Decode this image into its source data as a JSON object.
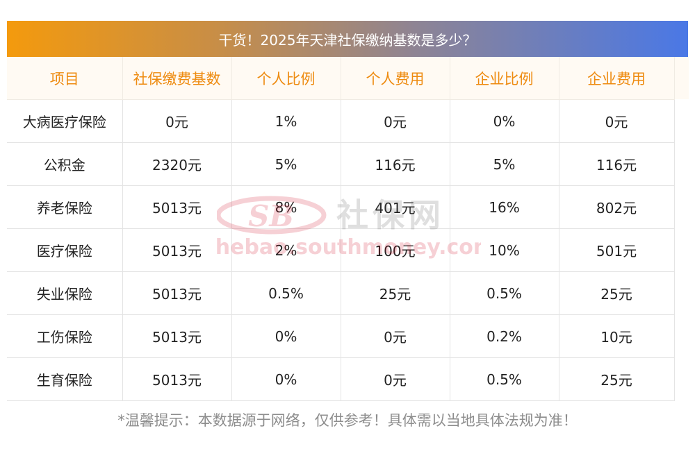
{
  "title": "干货！2025年天津社保缴纳基数是多少？",
  "table": {
    "headers": [
      "项目",
      "社保缴费基数",
      "个人比例",
      "个人费用",
      "企业比例",
      "企业费用"
    ],
    "rows": [
      [
        "大病医疗保险",
        "0元",
        "1%",
        "0元",
        "0%",
        "0元"
      ],
      [
        "公积金",
        "2320元",
        "5%",
        "116元",
        "5%",
        "116元"
      ],
      [
        "养老保险",
        "5013元",
        "8%",
        "401元",
        "16%",
        "802元"
      ],
      [
        "医疗保险",
        "5013元",
        "2%",
        "100元",
        "10%",
        "501元"
      ],
      [
        "失业保险",
        "5013元",
        "0.5%",
        "25元",
        "0.5%",
        "25元"
      ],
      [
        "工伤保险",
        "5013元",
        "0%",
        "0元",
        "0.2%",
        "10元"
      ],
      [
        "生育保险",
        "5013元",
        "0%",
        "0元",
        "0.5%",
        "25元"
      ]
    ]
  },
  "watermark": {
    "logo": "SB",
    "name": "社保网",
    "url": "shebao.southmoney.com"
  },
  "footnote": "*温馨提示：本数据源于网络，仅供参考！具体需以当地具体法规为准！",
  "colors": {
    "header_text": "#ee8b10",
    "banner_start": "#f49a0d",
    "banner_end": "#4a78e6"
  }
}
